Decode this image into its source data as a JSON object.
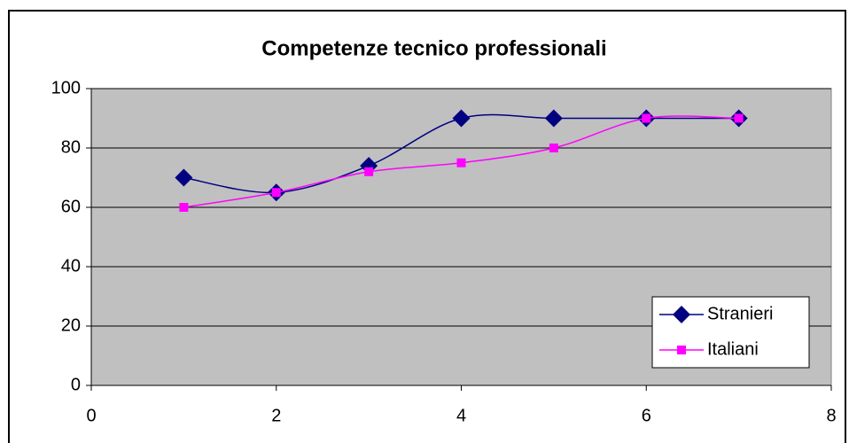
{
  "chart_data": {
    "type": "line",
    "title": "Competenze tecnico professionali",
    "x": [
      1,
      2,
      3,
      4,
      5,
      6,
      7
    ],
    "series": [
      {
        "name": "Stranieri",
        "color": "#000080",
        "marker": "diamond",
        "values": [
          70,
          65,
          74,
          90,
          90,
          90,
          90
        ]
      },
      {
        "name": "Italiani",
        "color": "#ff00ff",
        "marker": "square",
        "values": [
          60,
          65,
          72,
          75,
          80,
          90,
          90
        ]
      }
    ],
    "xlim": [
      0,
      8
    ],
    "xticks": [
      0,
      2,
      4,
      6,
      8
    ],
    "ylim": [
      0,
      100
    ],
    "yticks": [
      0,
      20,
      40,
      60,
      80,
      100
    ],
    "grid": true,
    "smooth": true,
    "legend": "lower right"
  }
}
